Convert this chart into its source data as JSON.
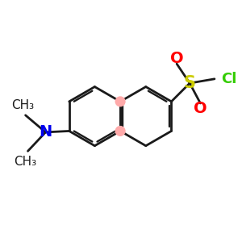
{
  "bg_color": "#ffffff",
  "ring_color": "#1a1a1a",
  "S_color": "#cccc00",
  "O_color": "#ff0000",
  "Cl_color": "#33cc00",
  "N_color": "#0000ee",
  "dot_color": "#ffaaaa",
  "line_width": 2.0,
  "font_size_S": 15,
  "font_size_O": 14,
  "font_size_Cl": 13,
  "font_size_N": 14,
  "font_size_me": 11,
  "fig_size": [
    3.0,
    3.0
  ],
  "dpi": 100,
  "xlim": [
    0,
    10
  ],
  "ylim": [
    0,
    10
  ]
}
